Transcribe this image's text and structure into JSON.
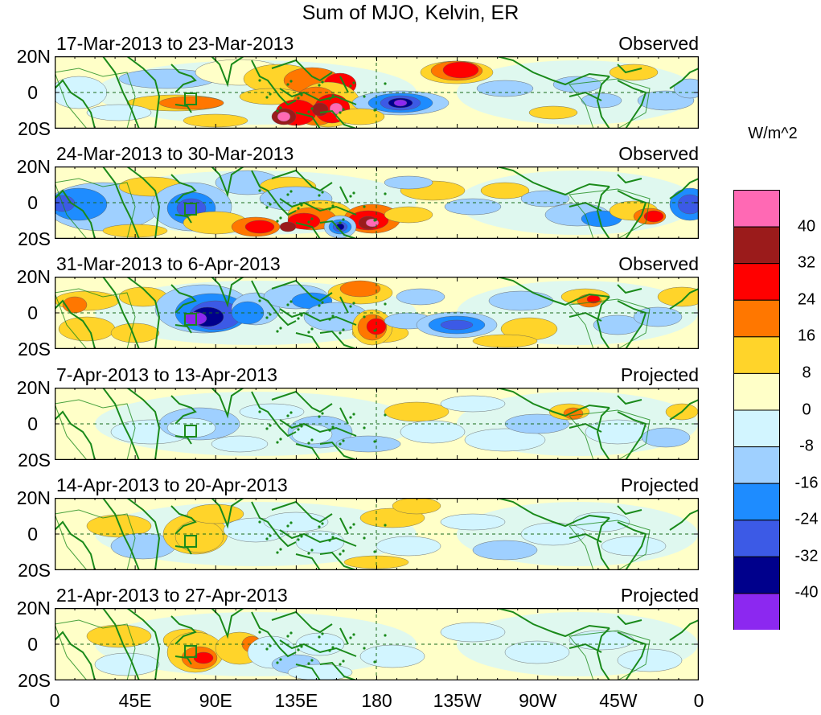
{
  "title": "Sum of MJO, Kelvin, ER",
  "latitude_labels": [
    "20N",
    "0",
    "20S"
  ],
  "longitude_labels": [
    "0",
    "45E",
    "90E",
    "135E",
    "180",
    "135W",
    "90W",
    "45W",
    "0"
  ],
  "panels": [
    {
      "period": "17-Mar-2013 to 23-Mar-2013",
      "status": "Observed"
    },
    {
      "period": "24-Mar-2013 to 30-Mar-2013",
      "status": "Observed"
    },
    {
      "period": "31-Mar-2013 to 6-Apr-2013",
      "status": "Observed"
    },
    {
      "period": "7-Apr-2013 to 13-Apr-2013",
      "status": "Projected"
    },
    {
      "period": "14-Apr-2013 to 20-Apr-2013",
      "status": "Projected"
    },
    {
      "period": "21-Apr-2013 to 27-Apr-2013",
      "status": "Projected"
    }
  ],
  "colorbar": {
    "units": "W/m^2",
    "labels": [
      "40",
      "32",
      "24",
      "16",
      "8",
      "0",
      "-8",
      "-16",
      "-24",
      "-32",
      "-40"
    ],
    "colors": [
      "#ff69b4",
      "#9b1b1b",
      "#ff0000",
      "#ff7700",
      "#ffd42a",
      "#ffffc8",
      "#d2f5ff",
      "#9fd0ff",
      "#1e8cff",
      "#3c5ae6",
      "#00008c",
      "#8c28f0"
    ]
  },
  "map_colors": {
    "coast": "#1a8a1a",
    "background": "#d2f5ff"
  }
}
